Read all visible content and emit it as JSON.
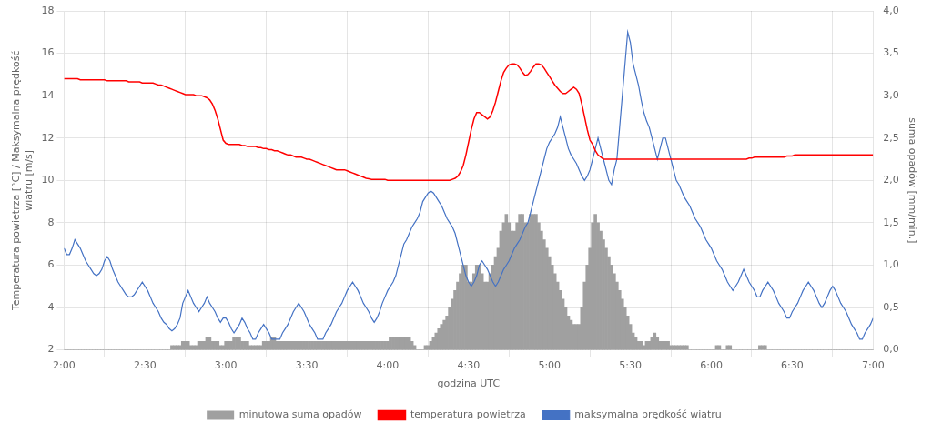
{
  "chart_data": {
    "type": "line",
    "xlabel": "godzina UTC",
    "ylabel": "Temperatura powietrza [°C] / Maksymalna prędkość\nwiatru [m/s]",
    "y2label": "suma opadów [mm/min.]",
    "xlim": [
      120,
      420
    ],
    "xticks": [
      {
        "value": 120,
        "label": "2:00"
      },
      {
        "value": 150,
        "label": "2:30"
      },
      {
        "value": 180,
        "label": "3:00"
      },
      {
        "value": 210,
        "label": "3:30"
      },
      {
        "value": 240,
        "label": "4:00"
      },
      {
        "value": 270,
        "label": "4:30"
      },
      {
        "value": 300,
        "label": "5:00"
      },
      {
        "value": 330,
        "label": "5:30"
      },
      {
        "value": 360,
        "label": "6:00"
      },
      {
        "value": 390,
        "label": "6:30"
      },
      {
        "value": 420,
        "label": "7:00"
      }
    ],
    "ylim": [
      2,
      18
    ],
    "yticks": [
      2,
      4,
      6,
      8,
      10,
      12,
      14,
      16,
      18
    ],
    "y2lim": [
      0.0,
      4.0
    ],
    "y2ticks": [
      {
        "value": 0.0,
        "label": "0,0"
      },
      {
        "value": 0.5,
        "label": "0,5"
      },
      {
        "value": 1.0,
        "label": "1,0"
      },
      {
        "value": 1.5,
        "label": "1,5"
      },
      {
        "value": 2.0,
        "label": "2,0"
      },
      {
        "value": 2.5,
        "label": "2,5"
      },
      {
        "value": 3.0,
        "label": "3,0"
      },
      {
        "value": 3.5,
        "label": "3,5"
      },
      {
        "value": 4.0,
        "label": "4,0"
      }
    ],
    "grid": true,
    "legend": "bottom",
    "x": [
      120,
      121,
      122,
      123,
      124,
      125,
      126,
      127,
      128,
      129,
      130,
      131,
      132,
      133,
      134,
      135,
      136,
      137,
      138,
      139,
      140,
      141,
      142,
      143,
      144,
      145,
      146,
      147,
      148,
      149,
      150,
      151,
      152,
      153,
      154,
      155,
      156,
      157,
      158,
      159,
      160,
      161,
      162,
      163,
      164,
      165,
      166,
      167,
      168,
      169,
      170,
      171,
      172,
      173,
      174,
      175,
      176,
      177,
      178,
      179,
      180,
      181,
      182,
      183,
      184,
      185,
      186,
      187,
      188,
      189,
      190,
      191,
      192,
      193,
      194,
      195,
      196,
      197,
      198,
      199,
      200,
      201,
      202,
      203,
      204,
      205,
      206,
      207,
      208,
      209,
      210,
      211,
      212,
      213,
      214,
      215,
      216,
      217,
      218,
      219,
      220,
      221,
      222,
      223,
      224,
      225,
      226,
      227,
      228,
      229,
      230,
      231,
      232,
      233,
      234,
      235,
      236,
      237,
      238,
      239,
      240,
      241,
      242,
      243,
      244,
      245,
      246,
      247,
      248,
      249,
      250,
      251,
      252,
      253,
      254,
      255,
      256,
      257,
      258,
      259,
      260,
      261,
      262,
      263,
      264,
      265,
      266,
      267,
      268,
      269,
      270,
      271,
      272,
      273,
      274,
      275,
      276,
      277,
      278,
      279,
      280,
      281,
      282,
      283,
      284,
      285,
      286,
      287,
      288,
      289,
      290,
      291,
      292,
      293,
      294,
      295,
      296,
      297,
      298,
      299,
      300,
      301,
      302,
      303,
      304,
      305,
      306,
      307,
      308,
      309,
      310,
      311,
      312,
      313,
      314,
      315,
      316,
      317,
      318,
      319,
      320,
      321,
      322,
      323,
      324,
      325,
      326,
      327,
      328,
      329,
      330,
      331,
      332,
      333,
      334,
      335,
      336,
      337,
      338,
      339,
      340,
      341,
      342,
      343,
      344,
      345,
      346,
      347,
      348,
      349,
      350,
      351,
      352,
      353,
      354,
      355,
      356,
      357,
      358,
      359,
      360,
      361,
      362,
      363,
      364,
      365,
      366,
      367,
      368,
      369,
      370,
      371,
      372,
      373,
      374,
      375,
      376,
      377,
      378,
      379,
      380,
      381,
      382,
      383,
      384,
      385,
      386,
      387,
      388,
      389,
      390,
      391,
      392,
      393,
      394,
      395,
      396,
      397,
      398,
      399,
      400,
      401,
      402,
      403,
      404,
      405,
      406,
      407,
      408,
      409,
      410,
      411,
      412,
      413,
      414,
      415,
      416,
      417,
      418,
      419,
      420
    ],
    "series": [
      {
        "name": "minutowa suma opadów",
        "type": "bar",
        "axis": "y2",
        "color": "#a0a0a0",
        "values": [
          0.0,
          0.0,
          0.0,
          0.0,
          0.0,
          0.0,
          0.0,
          0.0,
          0.0,
          0.0,
          0.0,
          0.0,
          0.0,
          0.0,
          0.0,
          0.0,
          0.0,
          0.0,
          0.0,
          0.0,
          0.0,
          0.0,
          0.0,
          0.0,
          0.0,
          0.0,
          0.0,
          0.0,
          0.0,
          0.0,
          0.0,
          0.0,
          0.0,
          0.0,
          0.0,
          0.0,
          0.0,
          0.0,
          0.0,
          0.0,
          0.05,
          0.05,
          0.05,
          0.05,
          0.1,
          0.1,
          0.1,
          0.05,
          0.05,
          0.05,
          0.1,
          0.1,
          0.1,
          0.15,
          0.15,
          0.1,
          0.1,
          0.1,
          0.05,
          0.05,
          0.1,
          0.1,
          0.1,
          0.15,
          0.15,
          0.15,
          0.1,
          0.1,
          0.1,
          0.05,
          0.05,
          0.05,
          0.05,
          0.05,
          0.1,
          0.1,
          0.1,
          0.15,
          0.15,
          0.1,
          0.1,
          0.1,
          0.1,
          0.1,
          0.1,
          0.1,
          0.1,
          0.1,
          0.1,
          0.1,
          0.1,
          0.1,
          0.1,
          0.1,
          0.1,
          0.1,
          0.1,
          0.1,
          0.1,
          0.1,
          0.1,
          0.1,
          0.1,
          0.1,
          0.1,
          0.1,
          0.1,
          0.1,
          0.1,
          0.1,
          0.1,
          0.1,
          0.1,
          0.1,
          0.1,
          0.1,
          0.1,
          0.1,
          0.1,
          0.1,
          0.1,
          0.15,
          0.15,
          0.15,
          0.15,
          0.15,
          0.15,
          0.15,
          0.15,
          0.1,
          0.05,
          0.0,
          0.0,
          0.0,
          0.05,
          0.05,
          0.1,
          0.15,
          0.2,
          0.25,
          0.3,
          0.35,
          0.4,
          0.5,
          0.6,
          0.7,
          0.8,
          0.9,
          1.0,
          1.0,
          0.8,
          0.8,
          0.9,
          1.0,
          1.0,
          0.9,
          0.8,
          0.8,
          0.9,
          1.0,
          1.1,
          1.2,
          1.4,
          1.5,
          1.6,
          1.5,
          1.4,
          1.4,
          1.5,
          1.6,
          1.6,
          1.5,
          1.5,
          1.6,
          1.6,
          1.6,
          1.5,
          1.4,
          1.3,
          1.2,
          1.1,
          1.0,
          0.9,
          0.8,
          0.7,
          0.6,
          0.5,
          0.4,
          0.35,
          0.3,
          0.3,
          0.3,
          0.5,
          0.8,
          1.0,
          1.2,
          1.5,
          1.6,
          1.5,
          1.4,
          1.3,
          1.2,
          1.1,
          1.0,
          0.9,
          0.8,
          0.7,
          0.6,
          0.5,
          0.4,
          0.3,
          0.2,
          0.15,
          0.1,
          0.1,
          0.05,
          0.1,
          0.1,
          0.15,
          0.2,
          0.15,
          0.1,
          0.1,
          0.1,
          0.1,
          0.05,
          0.05,
          0.05,
          0.05,
          0.05,
          0.05,
          0.05,
          0.0,
          0.0,
          0.0,
          0.0,
          0.0,
          0.0,
          0.0,
          0.0,
          0.0,
          0.0,
          0.05,
          0.05,
          0.0,
          0.0,
          0.05,
          0.05,
          0.0,
          0.0,
          0.0,
          0.0,
          0.0,
          0.0,
          0.0,
          0.0,
          0.0,
          0.0,
          0.05,
          0.05,
          0.05,
          0.0,
          0.0,
          0.0,
          0.0,
          0.0,
          0.0,
          0.0,
          0.0,
          0.0,
          0.0,
          0.0,
          0.0,
          0.0,
          0.0,
          0.0,
          0.0,
          0.0,
          0.0,
          0.0,
          0.0,
          0.0,
          0.0,
          0.0,
          0.0,
          0.0,
          0.0,
          0.0,
          0.0,
          0.0,
          0.0,
          0.0,
          0.0,
          0.0,
          0.0,
          0.0,
          0.0,
          0.0,
          0.0,
          0.0,
          0.0
        ]
      },
      {
        "name": "temperatura powietrza",
        "type": "line",
        "color": "#ff0000",
        "values": [
          14.8,
          14.8,
          14.8,
          14.8,
          14.8,
          14.8,
          14.75,
          14.75,
          14.75,
          14.75,
          14.75,
          14.75,
          14.75,
          14.75,
          14.75,
          14.75,
          14.7,
          14.7,
          14.7,
          14.7,
          14.7,
          14.7,
          14.7,
          14.7,
          14.65,
          14.65,
          14.65,
          14.65,
          14.65,
          14.6,
          14.6,
          14.6,
          14.6,
          14.6,
          14.55,
          14.5,
          14.5,
          14.45,
          14.4,
          14.35,
          14.3,
          14.25,
          14.2,
          14.15,
          14.1,
          14.05,
          14.05,
          14.05,
          14.05,
          14.0,
          14.0,
          14.0,
          13.95,
          13.9,
          13.8,
          13.6,
          13.3,
          12.9,
          12.4,
          11.9,
          11.75,
          11.7,
          11.7,
          11.7,
          11.7,
          11.7,
          11.65,
          11.65,
          11.6,
          11.6,
          11.6,
          11.6,
          11.55,
          11.55,
          11.5,
          11.5,
          11.45,
          11.45,
          11.4,
          11.4,
          11.35,
          11.3,
          11.25,
          11.2,
          11.2,
          11.15,
          11.1,
          11.1,
          11.1,
          11.05,
          11.0,
          11.0,
          10.95,
          10.9,
          10.85,
          10.8,
          10.75,
          10.7,
          10.65,
          10.6,
          10.55,
          10.5,
          10.5,
          10.5,
          10.5,
          10.45,
          10.4,
          10.35,
          10.3,
          10.25,
          10.2,
          10.15,
          10.1,
          10.08,
          10.05,
          10.05,
          10.05,
          10.05,
          10.05,
          10.05,
          10.0,
          10.0,
          10.0,
          10.0,
          10.0,
          10.0,
          10.0,
          10.0,
          10.0,
          10.0,
          10.0,
          10.0,
          10.0,
          10.0,
          10.0,
          10.0,
          10.0,
          10.0,
          10.0,
          10.0,
          10.0,
          10.0,
          10.0,
          10.0,
          10.05,
          10.1,
          10.2,
          10.4,
          10.7,
          11.2,
          11.8,
          12.4,
          12.9,
          13.2,
          13.2,
          13.1,
          13.0,
          12.9,
          13.0,
          13.3,
          13.7,
          14.2,
          14.7,
          15.1,
          15.3,
          15.45,
          15.5,
          15.5,
          15.45,
          15.3,
          15.1,
          14.95,
          15.0,
          15.15,
          15.35,
          15.5,
          15.5,
          15.45,
          15.3,
          15.1,
          14.9,
          14.7,
          14.5,
          14.35,
          14.2,
          14.1,
          14.1,
          14.2,
          14.3,
          14.4,
          14.3,
          14.1,
          13.6,
          13.0,
          12.4,
          11.9,
          11.7,
          11.4,
          11.2,
          11.1,
          11.0,
          11.0,
          11.0,
          11.0,
          11.0,
          11.0,
          11.0,
          11.0,
          11.0,
          11.0,
          11.0,
          11.0,
          11.0,
          11.0,
          11.0,
          11.0,
          11.0,
          11.0,
          11.0,
          11.0,
          11.0,
          11.0,
          11.0,
          11.0,
          11.0,
          11.0,
          11.0,
          11.0,
          11.0,
          11.0,
          11.0,
          11.0,
          11.0,
          11.0,
          11.0,
          11.0,
          11.0,
          11.0,
          11.0,
          11.0,
          11.0,
          11.0,
          11.0,
          11.0,
          11.0,
          11.0,
          11.0,
          11.0,
          11.0,
          11.0,
          11.0,
          11.0,
          11.0,
          11.0,
          11.05,
          11.05,
          11.1,
          11.1,
          11.1,
          11.1,
          11.1,
          11.1,
          11.1,
          11.1,
          11.1,
          11.1,
          11.1,
          11.1,
          11.15,
          11.15,
          11.15,
          11.2,
          11.2,
          11.2,
          11.2,
          11.2,
          11.2,
          11.2,
          11.2,
          11.2,
          11.2,
          11.2,
          11.2,
          11.2,
          11.2,
          11.2,
          11.2,
          11.2,
          11.2,
          11.2,
          11.2,
          11.2,
          11.2,
          11.2,
          11.2,
          11.2,
          11.2,
          11.2,
          11.2,
          11.2,
          11.2
        ]
      },
      {
        "name": "maksymalna prędkość wiatru",
        "type": "line",
        "color": "#4472c4",
        "values": [
          6.8,
          6.5,
          6.5,
          6.8,
          7.2,
          7.0,
          6.8,
          6.5,
          6.2,
          6.0,
          5.8,
          5.6,
          5.5,
          5.6,
          5.8,
          6.2,
          6.4,
          6.2,
          5.8,
          5.5,
          5.2,
          5.0,
          4.8,
          4.6,
          4.5,
          4.5,
          4.6,
          4.8,
          5.0,
          5.2,
          5.0,
          4.8,
          4.5,
          4.2,
          4.0,
          3.8,
          3.5,
          3.3,
          3.2,
          3.0,
          2.9,
          3.0,
          3.2,
          3.5,
          4.2,
          4.5,
          4.8,
          4.5,
          4.2,
          4.0,
          3.8,
          4.0,
          4.2,
          4.5,
          4.2,
          4.0,
          3.8,
          3.5,
          3.3,
          3.5,
          3.5,
          3.3,
          3.0,
          2.8,
          3.0,
          3.2,
          3.5,
          3.3,
          3.0,
          2.8,
          2.5,
          2.5,
          2.8,
          3.0,
          3.2,
          3.0,
          2.8,
          2.5,
          2.5,
          2.5,
          2.5,
          2.8,
          3.0,
          3.2,
          3.5,
          3.8,
          4.0,
          4.2,
          4.0,
          3.8,
          3.5,
          3.2,
          3.0,
          2.8,
          2.5,
          2.5,
          2.5,
          2.8,
          3.0,
          3.2,
          3.5,
          3.8,
          4.0,
          4.2,
          4.5,
          4.8,
          5.0,
          5.2,
          5.0,
          4.8,
          4.5,
          4.2,
          4.0,
          3.8,
          3.5,
          3.3,
          3.5,
          3.8,
          4.2,
          4.5,
          4.8,
          5.0,
          5.2,
          5.5,
          6.0,
          6.5,
          7.0,
          7.2,
          7.5,
          7.8,
          8.0,
          8.2,
          8.5,
          9.0,
          9.2,
          9.4,
          9.5,
          9.4,
          9.2,
          9.0,
          8.8,
          8.5,
          8.2,
          8.0,
          7.8,
          7.5,
          7.0,
          6.5,
          6.0,
          5.5,
          5.2,
          5.0,
          5.2,
          5.5,
          6.0,
          6.2,
          6.0,
          5.8,
          5.5,
          5.2,
          5.0,
          5.2,
          5.5,
          5.8,
          6.0,
          6.2,
          6.5,
          6.8,
          7.0,
          7.2,
          7.5,
          7.8,
          8.0,
          8.5,
          9.0,
          9.5,
          10.0,
          10.5,
          11.0,
          11.5,
          11.8,
          12.0,
          12.2,
          12.5,
          13.0,
          12.5,
          12.0,
          11.5,
          11.2,
          11.0,
          10.8,
          10.5,
          10.2,
          10.0,
          10.2,
          10.5,
          11.0,
          11.5,
          12.0,
          11.5,
          11.0,
          10.5,
          10.0,
          9.8,
          10.5,
          11.0,
          12.5,
          14.0,
          15.5,
          17.0,
          16.5,
          15.5,
          15.0,
          14.5,
          13.8,
          13.2,
          12.8,
          12.5,
          12.0,
          11.5,
          11.0,
          11.5,
          12.0,
          12.0,
          11.5,
          11.0,
          10.5,
          10.0,
          9.8,
          9.5,
          9.2,
          9.0,
          8.8,
          8.5,
          8.2,
          8.0,
          7.8,
          7.5,
          7.2,
          7.0,
          6.8,
          6.5,
          6.2,
          6.0,
          5.8,
          5.5,
          5.2,
          5.0,
          4.8,
          5.0,
          5.2,
          5.5,
          5.8,
          5.5,
          5.2,
          5.0,
          4.8,
          4.5,
          4.5,
          4.8,
          5.0,
          5.2,
          5.0,
          4.8,
          4.5,
          4.2,
          4.0,
          3.8,
          3.5,
          3.5,
          3.8,
          4.0,
          4.2,
          4.5,
          4.8,
          5.0,
          5.2,
          5.0,
          4.8,
          4.5,
          4.2,
          4.0,
          4.2,
          4.5,
          4.8,
          5.0,
          4.8,
          4.5,
          4.2,
          4.0,
          3.8,
          3.5,
          3.2,
          3.0,
          2.8,
          2.5,
          2.5,
          2.8,
          3.0,
          3.2,
          3.5
        ]
      }
    ]
  }
}
